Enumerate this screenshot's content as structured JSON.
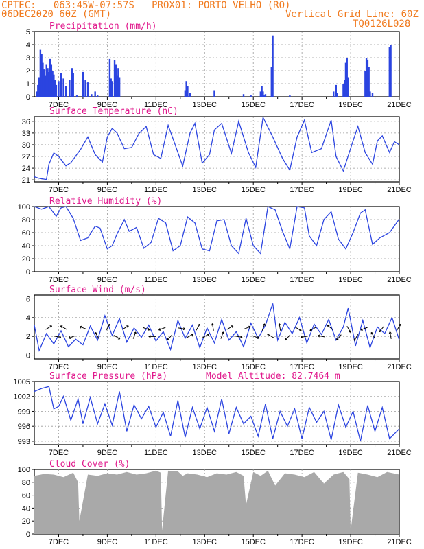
{
  "header": {
    "line1_left": "CPTEC:   063:45W-07:57S   PROX01: PORTO VELHO (RO)",
    "line2_left": "06DEC2020 60Z (GMT)",
    "line2_right": "Vertical Grid Line: 60Z",
    "line3_right": "TQ0126L028"
  },
  "x_axis": {
    "range": [
      6.0,
      21.0
    ],
    "ticks": [
      7,
      9,
      11,
      13,
      15,
      17,
      19,
      21
    ],
    "tick_labels": [
      "7DEC",
      "9DEC",
      "11DEC",
      "13DEC",
      "15DEC",
      "17DEC",
      "19DEC",
      "21DEC"
    ]
  },
  "colors": {
    "header": "#f07a1e",
    "title": "#e0188c",
    "series": "#2b44e0",
    "cloud": "#a9a9a9",
    "grid": "#9a9a9a"
  },
  "chart_data": [
    {
      "type": "bar",
      "title": "Precipitation (mm/h)",
      "ylim": [
        0,
        5
      ],
      "yticks": [
        0,
        1,
        2,
        3,
        4,
        5
      ],
      "x": [
        6.1,
        6.15,
        6.2,
        6.25,
        6.3,
        6.35,
        6.4,
        6.45,
        6.5,
        6.55,
        6.6,
        6.65,
        6.7,
        6.75,
        6.8,
        6.85,
        6.9,
        7.0,
        7.1,
        7.2,
        7.3,
        7.45,
        7.55,
        7.6,
        7.75,
        8.0,
        8.1,
        8.2,
        8.35,
        8.5,
        8.6,
        9.1,
        9.15,
        9.2,
        9.3,
        9.35,
        9.4,
        9.45,
        9.5,
        12.2,
        12.25,
        12.3,
        12.4,
        13.4,
        14.6,
        14.9,
        15.3,
        15.35,
        15.4,
        15.45,
        15.5,
        15.75,
        15.8,
        16.5,
        18.3,
        18.4,
        18.45,
        18.7,
        18.75,
        18.8,
        18.85,
        18.9,
        19.6,
        19.65,
        19.7,
        19.75,
        19.8,
        19.9,
        20.6,
        20.65
      ],
      "values": [
        0.4,
        0.9,
        1.5,
        3.6,
        3.3,
        2.6,
        2.1,
        1.6,
        2.5,
        2.2,
        1.9,
        2.9,
        2.5,
        2.0,
        1.7,
        1.3,
        0.9,
        1.2,
        1.8,
        1.4,
        0.8,
        1.3,
        2.2,
        1.8,
        0.1,
        1.9,
        1.3,
        1.1,
        0.2,
        0.4,
        0.1,
        2.9,
        1.4,
        1.2,
        2.8,
        2.5,
        1.6,
        2.2,
        1.5,
        0.5,
        1.2,
        0.8,
        0.3,
        0.5,
        0.2,
        0.1,
        0.4,
        0.8,
        0.4,
        0.1,
        0.2,
        2.3,
        4.7,
        0.1,
        0.4,
        0.9,
        0.3,
        1.0,
        1.3,
        2.6,
        3.0,
        1.5,
        2.0,
        3.0,
        2.8,
        2.3,
        0.4,
        0.3,
        3.8,
        4.0
      ]
    },
    {
      "type": "line",
      "title": "Surface Temperature (nC)",
      "ylim": [
        20.5,
        37.2
      ],
      "yticks": [
        21,
        24,
        27,
        30,
        33,
        36
      ],
      "x": [
        6.0,
        6.2,
        6.5,
        6.6,
        6.8,
        7.0,
        7.3,
        7.5,
        7.9,
        8.2,
        8.5,
        8.8,
        9.0,
        9.2,
        9.4,
        9.7,
        10.0,
        10.3,
        10.6,
        10.9,
        11.2,
        11.5,
        11.8,
        12.1,
        12.4,
        12.6,
        12.9,
        13.2,
        13.4,
        13.7,
        14.1,
        14.4,
        14.8,
        15.1,
        15.4,
        15.8,
        16.2,
        16.5,
        16.8,
        17.1,
        17.4,
        17.8,
        18.2,
        18.4,
        18.7,
        19.1,
        19.3,
        19.6,
        19.9,
        20.1,
        20.3,
        20.6,
        20.8,
        21.0
      ],
      "values": [
        21.8,
        21.4,
        21.1,
        25.0,
        27.9,
        27.0,
        24.6,
        25.4,
        28.8,
        32.0,
        27.5,
        25.6,
        32.0,
        34.2,
        33.0,
        29.0,
        29.3,
        32.9,
        34.7,
        27.5,
        26.5,
        35.0,
        29.8,
        24.5,
        33.0,
        35.5,
        25.3,
        27.5,
        33.8,
        35.5,
        27.8,
        36.0,
        28.0,
        24.2,
        37.0,
        32.0,
        26.5,
        23.5,
        32.0,
        36.3,
        28.0,
        29.0,
        36.3,
        27.0,
        23.3,
        31.0,
        34.7,
        28.0,
        25.0,
        31.0,
        32.3,
        28.0,
        30.8,
        30.0
      ]
    },
    {
      "type": "line",
      "title": "Relative Humidity (%)",
      "ylim": [
        0,
        100
      ],
      "yticks": [
        0,
        20,
        40,
        60,
        80,
        100
      ],
      "x": [
        6.0,
        6.3,
        6.6,
        6.9,
        7.1,
        7.3,
        7.6,
        7.9,
        8.2,
        8.5,
        8.7,
        9.0,
        9.2,
        9.4,
        9.7,
        9.9,
        10.2,
        10.5,
        10.8,
        11.1,
        11.4,
        11.7,
        12.0,
        12.3,
        12.6,
        12.9,
        13.2,
        13.5,
        13.8,
        14.1,
        14.4,
        14.7,
        15.0,
        15.3,
        15.6,
        15.9,
        16.2,
        16.5,
        16.8,
        17.1,
        17.3,
        17.6,
        17.9,
        18.2,
        18.5,
        18.8,
        19.1,
        19.4,
        19.6,
        19.9,
        20.2,
        20.6,
        21.0
      ],
      "values": [
        100,
        96,
        100,
        85,
        98,
        100,
        82,
        48,
        52,
        70,
        67,
        35,
        40,
        58,
        80,
        62,
        68,
        36,
        45,
        82,
        75,
        32,
        40,
        84,
        75,
        35,
        32,
        78,
        80,
        40,
        28,
        82,
        40,
        28,
        100,
        95,
        62,
        35,
        100,
        98,
        55,
        40,
        80,
        92,
        50,
        35,
        60,
        90,
        95,
        42,
        52,
        60,
        81
      ]
    },
    {
      "type": "line",
      "title": "Surface Wind (m/s)",
      "ylim": [
        -0.4,
        6.4
      ],
      "yticks": [
        0,
        2,
        4,
        6
      ],
      "x": [
        6.0,
        6.2,
        6.5,
        6.8,
        7.1,
        7.4,
        7.7,
        8.0,
        8.3,
        8.6,
        8.9,
        9.2,
        9.5,
        9.8,
        10.1,
        10.4,
        10.7,
        11.0,
        11.3,
        11.6,
        11.9,
        12.2,
        12.5,
        12.8,
        13.1,
        13.4,
        13.7,
        14.0,
        14.3,
        14.6,
        14.9,
        15.2,
        15.5,
        15.8,
        16.0,
        16.3,
        16.6,
        16.9,
        17.2,
        17.5,
        17.8,
        18.1,
        18.4,
        18.7,
        18.9,
        19.2,
        19.5,
        19.8,
        20.1,
        20.4,
        20.7,
        21.0
      ],
      "values": [
        3.2,
        0.5,
        2.3,
        1.2,
        2.6,
        0.9,
        1.7,
        1.1,
        3.1,
        1.6,
        4.2,
        2.1,
        3.9,
        1.4,
        2.9,
        1.9,
        3.2,
        1.5,
        2.5,
        0.6,
        3.7,
        1.8,
        3.2,
        0.8,
        2.9,
        1.3,
        3.8,
        1.6,
        2.5,
        0.9,
        3.4,
        1.8,
        3.2,
        5.5,
        1.6,
        3.5,
        2.3,
        4.0,
        1.3,
        3.3,
        2.2,
        3.8,
        1.6,
        3.0,
        5.0,
        1.0,
        3.7,
        0.8,
        3.0,
        2.3,
        4.0,
        1.6
      ],
      "arrows_x": [
        6.55,
        6.9,
        7.25,
        7.6,
        8.05,
        8.6,
        9.0,
        9.35,
        9.7,
        10.1,
        10.55,
        10.9,
        11.3,
        11.6,
        12.0,
        12.35,
        12.7,
        13.0,
        13.35,
        13.7,
        14.0,
        14.35,
        14.7,
        15.05,
        15.4,
        15.75,
        16.1,
        16.45,
        16.8,
        17.15,
        17.5,
        17.85,
        18.2,
        18.55,
        18.9,
        19.25,
        19.6,
        19.95,
        20.3,
        20.65,
        20.95
      ],
      "arrows_dir": [
        30,
        -10,
        150,
        200,
        160,
        120,
        60,
        -30,
        30,
        70,
        -20,
        180,
        200,
        230,
        -10,
        30,
        60,
        30,
        100,
        70,
        30,
        -10,
        20,
        -20,
        70,
        150,
        100,
        230,
        -30,
        190,
        210,
        170,
        140,
        230,
        -60,
        240,
        200,
        120,
        230,
        100,
        60
      ]
    },
    {
      "type": "line",
      "title": "Surface Pressure (hPa)",
      "annotation": "Model Altitude: 82.7464 m",
      "ylim": [
        992.3,
        1005.0
      ],
      "yticks": [
        993,
        996,
        999,
        1002,
        1005
      ],
      "x": [
        6.0,
        6.3,
        6.6,
        6.8,
        7.0,
        7.2,
        7.5,
        7.8,
        8.0,
        8.3,
        8.6,
        8.9,
        9.2,
        9.5,
        9.8,
        10.1,
        10.4,
        10.7,
        11.0,
        11.3,
        11.6,
        11.9,
        12.2,
        12.5,
        12.8,
        13.1,
        13.4,
        13.7,
        14.0,
        14.3,
        14.6,
        14.9,
        15.2,
        15.5,
        15.8,
        16.1,
        16.4,
        16.7,
        17.0,
        17.3,
        17.6,
        17.9,
        18.2,
        18.5,
        18.8,
        19.1,
        19.4,
        19.7,
        20.0,
        20.3,
        20.6,
        21.0
      ],
      "values": [
        1003.0,
        1003.6,
        1004.0,
        999.5,
        1000.0,
        1002.0,
        997.2,
        1001.5,
        996.5,
        1001.8,
        996.5,
        1000.5,
        996.2,
        1003.0,
        995.0,
        1000.3,
        997.5,
        1000.0,
        995.8,
        998.8,
        994.0,
        1001.2,
        993.8,
        999.8,
        995.5,
        999.8,
        995.0,
        1001.5,
        994.5,
        999.8,
        996.5,
        998.0,
        994.0,
        1000.5,
        993.5,
        999.0,
        996.0,
        999.5,
        993.5,
        999.8,
        996.8,
        999.0,
        993.3,
        1000.3,
        995.8,
        999.0,
        993.0,
        1000.2,
        995.0,
        999.8,
        993.5,
        995.5
      ]
    },
    {
      "type": "area",
      "title": "Cloud Cover (%)",
      "ylim": [
        0,
        100
      ],
      "yticks": [
        0,
        20,
        40,
        60,
        80,
        100
      ],
      "x": [
        6.0,
        6.4,
        6.8,
        7.2,
        7.6,
        7.8,
        7.85,
        8.2,
        8.6,
        9.0,
        9.4,
        9.8,
        10.2,
        10.6,
        11.0,
        11.2,
        11.25,
        11.5,
        11.9,
        12.1,
        12.3,
        12.7,
        13.1,
        13.5,
        13.9,
        14.3,
        14.6,
        14.7,
        15.0,
        15.3,
        15.6,
        15.9,
        16.3,
        16.7,
        17.1,
        17.5,
        17.9,
        18.3,
        18.7,
        18.95,
        19.0,
        19.3,
        19.7,
        20.1,
        20.5,
        21.0
      ],
      "values": [
        90,
        93,
        92,
        88,
        95,
        80,
        20,
        92,
        90,
        94,
        92,
        96,
        92,
        94,
        98,
        95,
        5,
        98,
        97,
        90,
        94,
        92,
        88,
        94,
        92,
        96,
        90,
        45,
        96,
        90,
        98,
        75,
        94,
        92,
        88,
        96,
        78,
        92,
        96,
        85,
        5,
        95,
        92,
        88,
        96,
        92
      ]
    }
  ]
}
